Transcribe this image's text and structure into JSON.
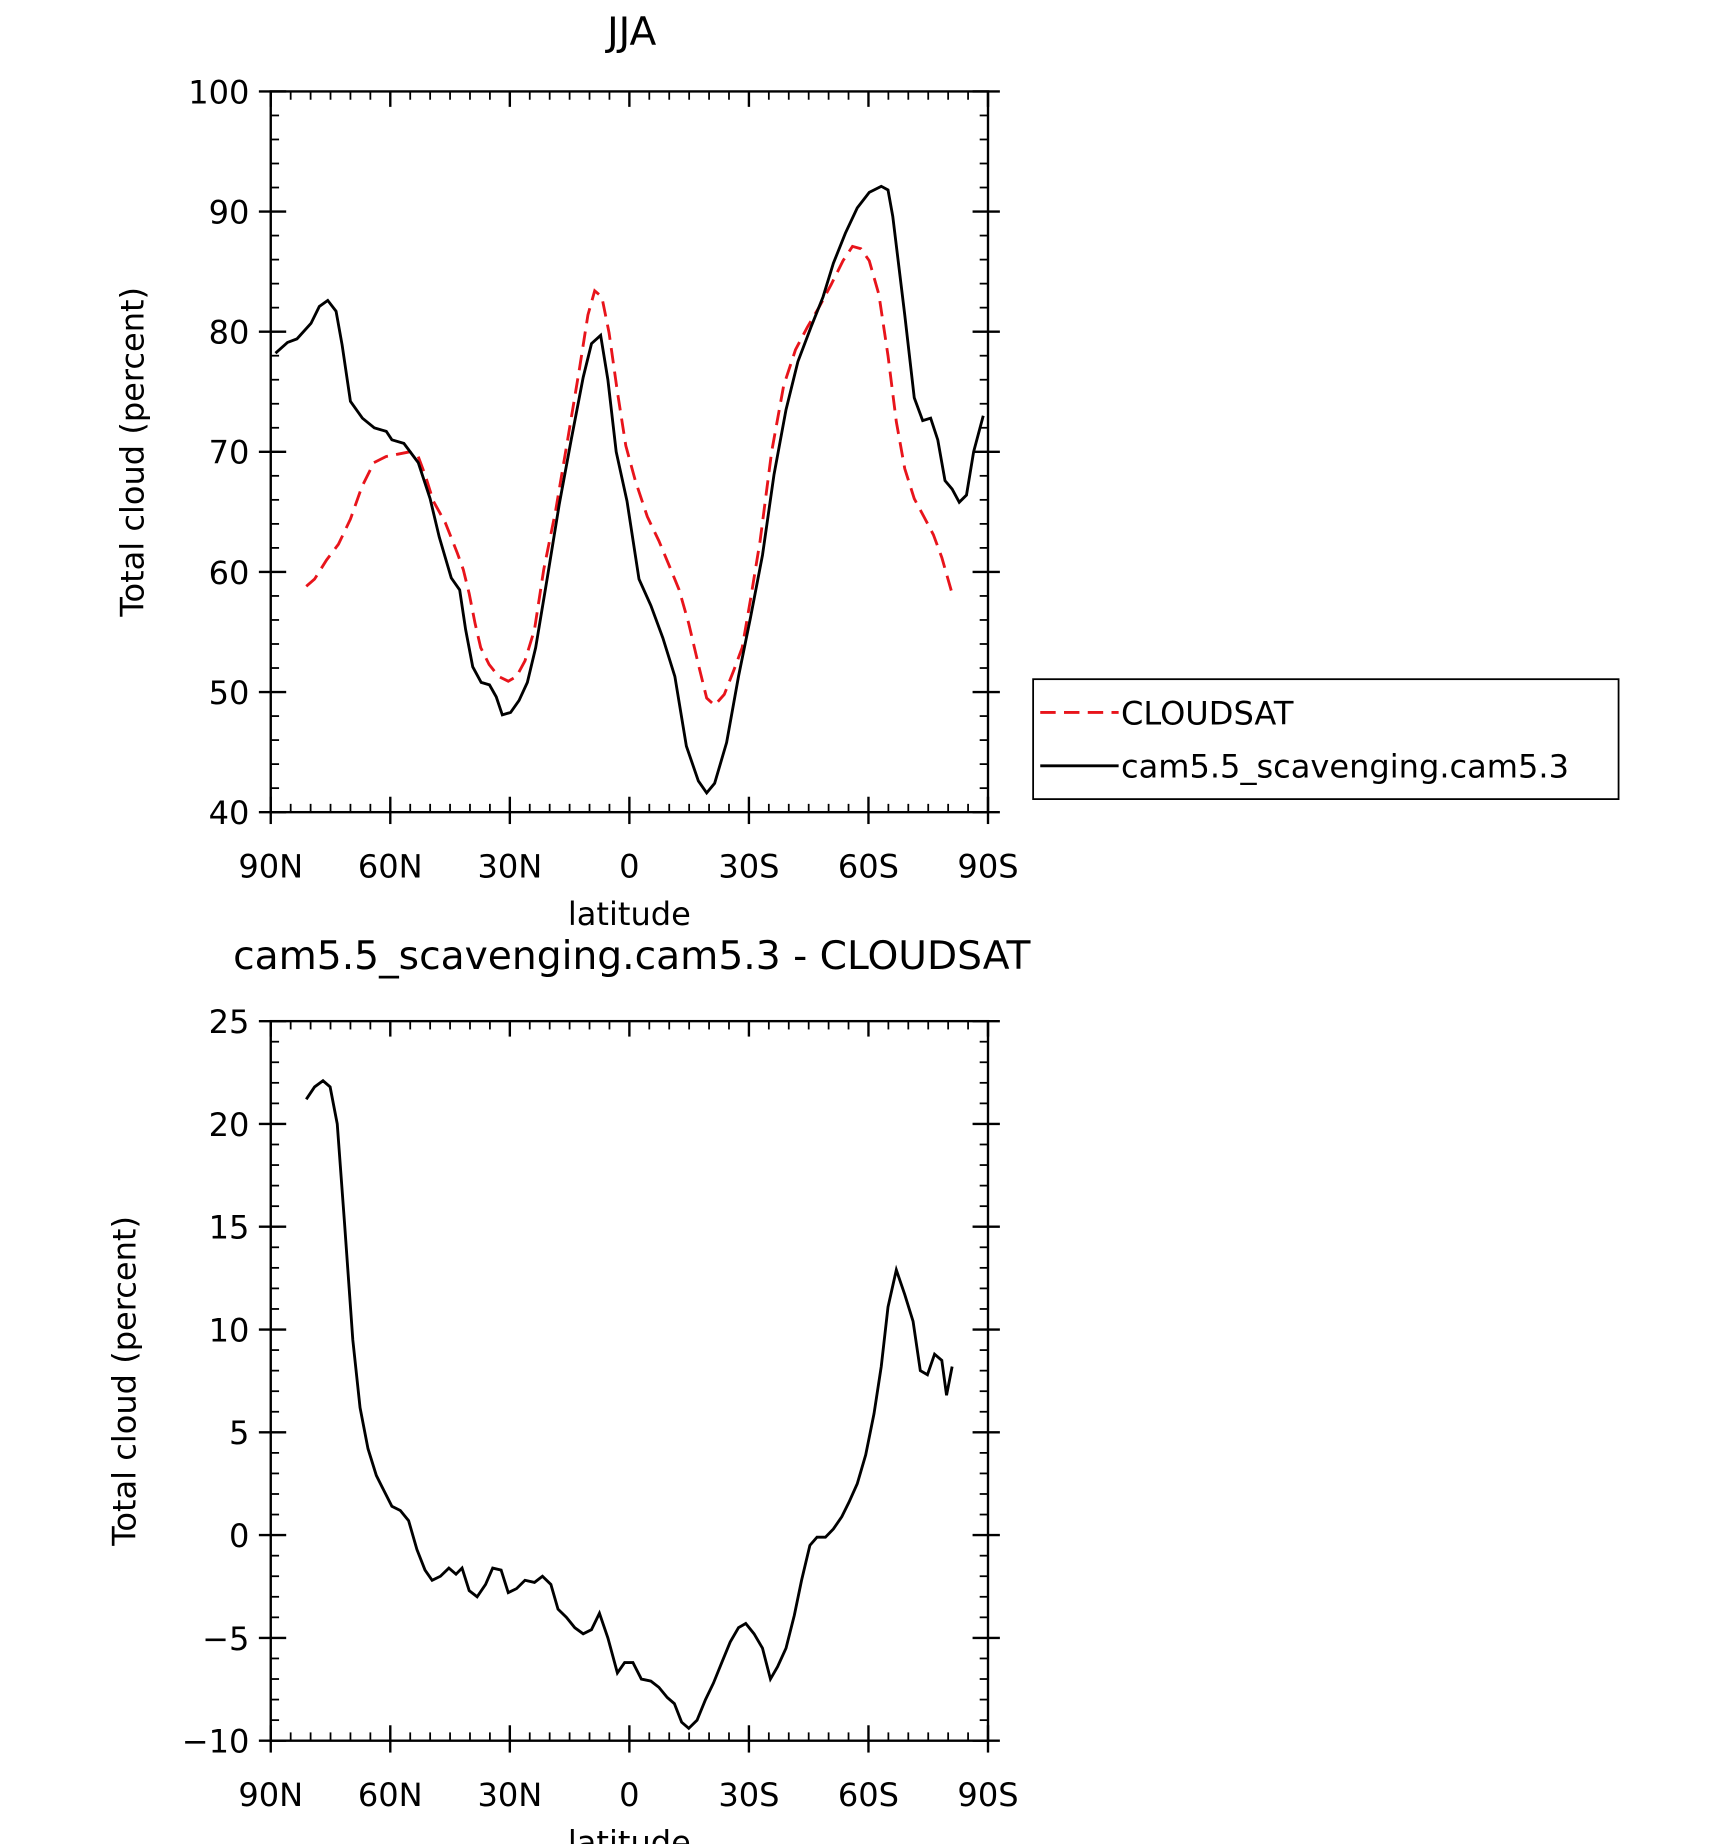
{
  "chart_data": [
    {
      "type": "line",
      "title": "JJA",
      "xlabel": "latitude",
      "ylabel": "Total cloud (percent)",
      "xlim": [
        90,
        -90
      ],
      "xticks": [
        {
          "value": 90,
          "label": "90N"
        },
        {
          "value": 60,
          "label": "60N"
        },
        {
          "value": 30,
          "label": "30N"
        },
        0,
        {
          "value": -30,
          "label": "30S"
        },
        {
          "value": -60,
          "label": "60S"
        },
        {
          "value": -90,
          "label": "90S"
        }
      ],
      "ylim": [
        40,
        100
      ],
      "yticks": [
        40,
        50,
        60,
        70,
        80,
        90,
        100
      ],
      "legend": "right",
      "series": [
        {
          "name": "CLOUDSAT",
          "color": "#e8141b",
          "linestyle": "dashed",
          "x": [
            81.1,
            79.0,
            76.0,
            73.0,
            70.0,
            67.1,
            64.1,
            61.1,
            58.1,
            55.1,
            53.0,
            51.3,
            49.2,
            46.2,
            43.2,
            41.7,
            40.2,
            38.7,
            37.3,
            35.2,
            32.8,
            30.4,
            28.3,
            26.2,
            23.8,
            21.5,
            18.5,
            15.5,
            12.5,
            10.4,
            8.7,
            6.9,
            5.1,
            3.0,
            0.9,
            -1.5,
            -4.5,
            -7.4,
            -10.4,
            -12.5,
            -14.9,
            -17.3,
            -19.4,
            -21.4,
            -23.8,
            -26.2,
            -28.3,
            -30.4,
            -32.8,
            -35.7,
            -38.7,
            -41.7,
            -44.7,
            -47.7,
            -50.6,
            -53.6,
            -56.0,
            -58.1,
            -60.2,
            -62.6,
            -64.9,
            -67.0,
            -69.1,
            -71.5,
            -73.9,
            -76.3,
            -78.4,
            -81.0
          ],
          "values": [
            58.8,
            59.4,
            61.0,
            62.3,
            64.4,
            67.1,
            69.1,
            69.6,
            69.8,
            70.0,
            69.6,
            68.1,
            65.9,
            64.1,
            61.6,
            60.2,
            58.2,
            55.7,
            53.7,
            52.3,
            51.3,
            50.9,
            51.3,
            52.6,
            55.2,
            60.2,
            65.1,
            71.0,
            77.0,
            81.4,
            83.4,
            82.9,
            79.9,
            75.0,
            70.5,
            67.6,
            64.6,
            62.6,
            60.2,
            58.5,
            55.7,
            52.3,
            49.5,
            48.9,
            49.8,
            51.8,
            53.7,
            57.7,
            62.6,
            70.0,
            75.5,
            78.5,
            80.4,
            82.1,
            83.9,
            85.9,
            87.1,
            86.9,
            85.9,
            83.1,
            78.0,
            72.5,
            68.6,
            66.1,
            64.6,
            63.1,
            61.2,
            58.2
          ]
        },
        {
          "name": "cam5.5_scavenging.cam5.3",
          "color": "#000000",
          "linestyle": "solid",
          "x": [
            88.8,
            85.8,
            83.4,
            79.9,
            77.8,
            75.7,
            73.6,
            72.1,
            70.0,
            67.0,
            64.0,
            61.0,
            59.6,
            56.6,
            53.0,
            50.0,
            47.7,
            44.7,
            42.6,
            41.1,
            39.3,
            37.2,
            35.1,
            33.4,
            31.9,
            29.8,
            27.7,
            25.6,
            23.5,
            20.5,
            17.6,
            14.6,
            11.6,
            9.5,
            7.2,
            5.4,
            3.3,
            0.6,
            -2.4,
            -5.4,
            -8.4,
            -11.4,
            -14.3,
            -17.3,
            -19.4,
            -21.4,
            -24.4,
            -27.4,
            -30.4,
            -33.4,
            -36.3,
            -39.3,
            -42.3,
            -45.6,
            -48.6,
            -51.2,
            -54.2,
            -57.2,
            -60.2,
            -63.2,
            -64.9,
            -66.1,
            -69.1,
            -71.5,
            -73.6,
            -75.6,
            -77.4,
            -79.2,
            -81.0,
            -82.8,
            -84.6,
            -86.4,
            -88.8
          ],
          "values": [
            78.2,
            79.1,
            79.4,
            80.7,
            82.1,
            82.6,
            81.7,
            78.9,
            74.2,
            72.8,
            72.0,
            71.7,
            71.0,
            70.7,
            69.1,
            66.1,
            62.9,
            59.5,
            58.5,
            55.2,
            52.1,
            50.8,
            50.6,
            49.6,
            48.1,
            48.3,
            49.3,
            50.8,
            53.7,
            59.7,
            65.6,
            71.0,
            76.2,
            79.0,
            79.7,
            76.0,
            70.0,
            65.9,
            59.4,
            57.2,
            54.5,
            51.3,
            45.5,
            42.6,
            41.6,
            42.4,
            45.8,
            51.3,
            56.2,
            61.4,
            68.1,
            73.5,
            77.5,
            80.4,
            82.9,
            85.7,
            88.2,
            90.3,
            91.6,
            92.1,
            91.8,
            89.6,
            81.4,
            74.5,
            72.6,
            72.8,
            71.0,
            67.6,
            66.9,
            65.8,
            66.4,
            70.0,
            73.0
          ]
        }
      ]
    },
    {
      "type": "line",
      "title": "cam5.5_scavenging.cam5.3 - CLOUDSAT",
      "xlabel": "latitude",
      "ylabel": "Total cloud (percent)",
      "xlim": [
        90,
        -90
      ],
      "xticks": [
        {
          "value": 90,
          "label": "90N"
        },
        {
          "value": 60,
          "label": "60N"
        },
        {
          "value": 30,
          "label": "30N"
        },
        0,
        {
          "value": -30,
          "label": "30S"
        },
        {
          "value": -60,
          "label": "60S"
        },
        {
          "value": -90,
          "label": "90S"
        }
      ],
      "ylim": [
        -10,
        25
      ],
      "yticks": [
        {
          "value": -10,
          "label": "−10"
        },
        {
          "value": -5,
          "label": "−5"
        },
        0,
        5,
        10,
        15,
        20,
        25
      ],
      "series": [
        {
          "color": "#000000",
          "linestyle": "solid",
          "x": [
            81.1,
            79.0,
            76.9,
            75.1,
            73.3,
            71.5,
            69.4,
            67.6,
            65.6,
            63.5,
            61.7,
            59.6,
            57.5,
            55.4,
            53.3,
            51.3,
            49.5,
            47.4,
            45.3,
            43.5,
            42.0,
            40.2,
            38.2,
            36.1,
            34.3,
            32.2,
            30.4,
            28.3,
            26.2,
            23.8,
            21.8,
            19.7,
            17.9,
            15.8,
            13.7,
            11.6,
            9.5,
            7.5,
            5.4,
            3.0,
            1.2,
            -0.9,
            -3.0,
            -5.4,
            -7.4,
            -9.5,
            -11.3,
            -13.1,
            -14.9,
            -17.0,
            -19.1,
            -21.1,
            -23.2,
            -25.3,
            -27.4,
            -29.2,
            -31.3,
            -33.4,
            -35.4,
            -37.2,
            -39.3,
            -41.4,
            -43.2,
            -45.3,
            -47.1,
            -49.2,
            -51.2,
            -53.3,
            -55.1,
            -57.2,
            -59.3,
            -61.4,
            -63.2,
            -64.9,
            -67.0,
            -69.1,
            -71.2,
            -73.0,
            -74.8,
            -76.6,
            -78.4,
            -79.6,
            -81.0
          ],
          "values": [
            21.2,
            21.8,
            22.1,
            21.8,
            20.0,
            15.2,
            9.5,
            6.2,
            4.2,
            2.9,
            2.2,
            1.4,
            1.2,
            0.7,
            -0.7,
            -1.7,
            -2.2,
            -2.0,
            -1.6,
            -1.9,
            -1.6,
            -2.7,
            -3.0,
            -2.4,
            -1.6,
            -1.7,
            -2.8,
            -2.6,
            -2.2,
            -2.3,
            -2.0,
            -2.4,
            -3.6,
            -4.0,
            -4.5,
            -4.8,
            -4.6,
            -3.8,
            -5.0,
            -6.7,
            -6.2,
            -6.2,
            -7.0,
            -7.1,
            -7.4,
            -7.9,
            -8.2,
            -9.1,
            -9.4,
            -9.0,
            -8.0,
            -7.2,
            -6.2,
            -5.2,
            -4.5,
            -4.3,
            -4.8,
            -5.5,
            -7.0,
            -6.4,
            -5.5,
            -3.9,
            -2.2,
            -0.5,
            -0.1,
            -0.1,
            0.3,
            0.9,
            1.6,
            2.5,
            3.9,
            5.9,
            8.2,
            11.1,
            12.9,
            11.7,
            10.4,
            8.0,
            7.8,
            8.8,
            8.5,
            6.8,
            8.2
          ]
        }
      ]
    }
  ]
}
